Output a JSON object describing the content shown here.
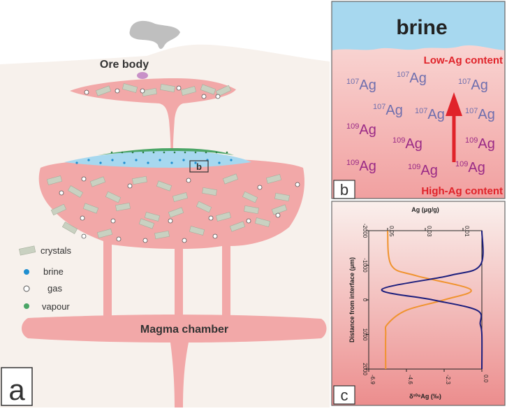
{
  "panel_a": {
    "label": "a",
    "ore_body_label": "Ore body",
    "inset_marker": "b",
    "magma_chamber_label": "Magma chamber",
    "legend": [
      {
        "icon": "crystal-icon",
        "label": "crystals",
        "color": "#c9d1c1"
      },
      {
        "icon": "brine-dot-icon",
        "label": "brine",
        "color": "#1f8fd0"
      },
      {
        "icon": "gas-circle-icon",
        "label": "gas",
        "color": "#ffffff"
      },
      {
        "icon": "vapour-dot-icon",
        "label": "vapour",
        "color": "#4aa566"
      }
    ]
  },
  "panel_b": {
    "label": "b",
    "brine_label": "brine",
    "top_label": "Low-Ag content",
    "bottom_label": "High-Ag content",
    "isotopes": {
      "ag107": {
        "mass": "107",
        "symbol": "Ag",
        "color": "#6f6fae"
      },
      "ag109": {
        "mass": "109",
        "symbol": "Ag",
        "color": "#9a2a86"
      }
    },
    "arrow_color": "#e0232a"
  },
  "panel_c": {
    "label": "c",
    "top_axis_label": "Ag (μg/g)",
    "top_ticks": [
      "0.01",
      "0.03",
      "0.05"
    ],
    "bottom_axis_label": "δ¹⁰⁹Ag (‰)",
    "bottom_ticks": [
      "-6.9",
      "-4.6",
      "-2.3",
      "0.0"
    ],
    "side_axis_label": "Distance from interface (μm)",
    "side_ticks": [
      "-2000",
      "-1000",
      "0",
      "1000",
      "2000"
    ]
  },
  "colors": {
    "background_light": "#f7f1ec",
    "magma": "#f2a8a8",
    "brine_layer": "#a7d8ef",
    "ag_curve": "#f0932e",
    "delta_curve": "#1c1e7d",
    "gray_blob": "#bfbfbf",
    "ore_purple": "#c890c8"
  },
  "chart_data": {
    "type": "line",
    "x_axis": "Distance from interface (μm)",
    "xlim": [
      -2000,
      2000
    ],
    "series": [
      {
        "name": "Ag (μg/g)",
        "axis": "top",
        "ylim": [
          0.0,
          0.06
        ],
        "x": [
          -2000,
          -1000,
          -700,
          -300,
          0,
          300,
          700,
          1000,
          2000
        ],
        "values": [
          0.05,
          0.048,
          0.035,
          0.006,
          0.02,
          0.04,
          0.05,
          0.051,
          0.051
        ]
      },
      {
        "name": "δ109Ag (‰)",
        "axis": "bottom",
        "ylim": [
          -6.9,
          0.0
        ],
        "x": [
          -2000,
          -1000,
          -700,
          -300,
          0,
          300,
          700,
          1000,
          2000
        ],
        "values": [
          0.0,
          -0.1,
          -2.0,
          -6.1,
          -3.0,
          -0.3,
          -0.1,
          0.0,
          0.0
        ]
      }
    ]
  }
}
